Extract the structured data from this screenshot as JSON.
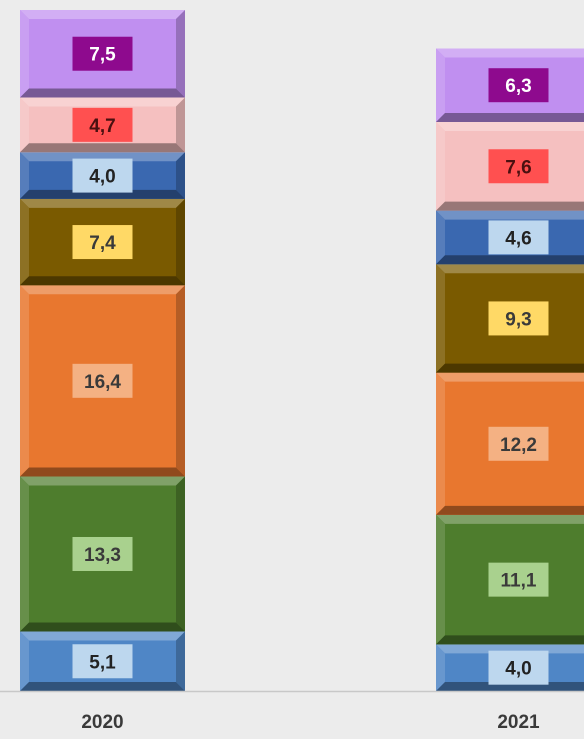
{
  "chart_data": {
    "type": "bar",
    "stacked": true,
    "categories": [
      "2020",
      "2021"
    ],
    "series": [
      {
        "values": [
          5.1,
          4.0
        ],
        "color": "#4f86c6",
        "label_bg": "#bdd7ee",
        "label_color": "#222222"
      },
      {
        "values": [
          13.3,
          11.1
        ],
        "color": "#4e7d2d",
        "label_bg": "#a9d18e",
        "label_color": "#3a3a3a"
      },
      {
        "values": [
          16.4,
          12.2
        ],
        "color": "#e8772f",
        "label_bg": "#f4b183",
        "label_color": "#3a3a3a"
      },
      {
        "values": [
          7.4,
          9.3
        ],
        "color": "#7a5a00",
        "label_bg": "#ffd966",
        "label_color": "#3a3a3a"
      },
      {
        "values": [
          4.0,
          4.6
        ],
        "color": "#3a68b0",
        "label_bg": "#bdd7ee",
        "label_color": "#222222"
      },
      {
        "values": [
          4.7,
          7.6
        ],
        "color": "#f5c0c0",
        "label_bg": "#ff5050",
        "label_color": "#4a1010"
      },
      {
        "values": [
          7.5,
          6.3
        ],
        "color": "#c08ff0",
        "label_bg": "#8e0a8e",
        "label_color": "#ffffff"
      }
    ],
    "value_format": "comma-decimal",
    "legend": "none",
    "grid": false,
    "colors": {
      "background": "#ececec",
      "baseline": "#c8c8c8",
      "category_text": "#3a3a3a"
    }
  }
}
